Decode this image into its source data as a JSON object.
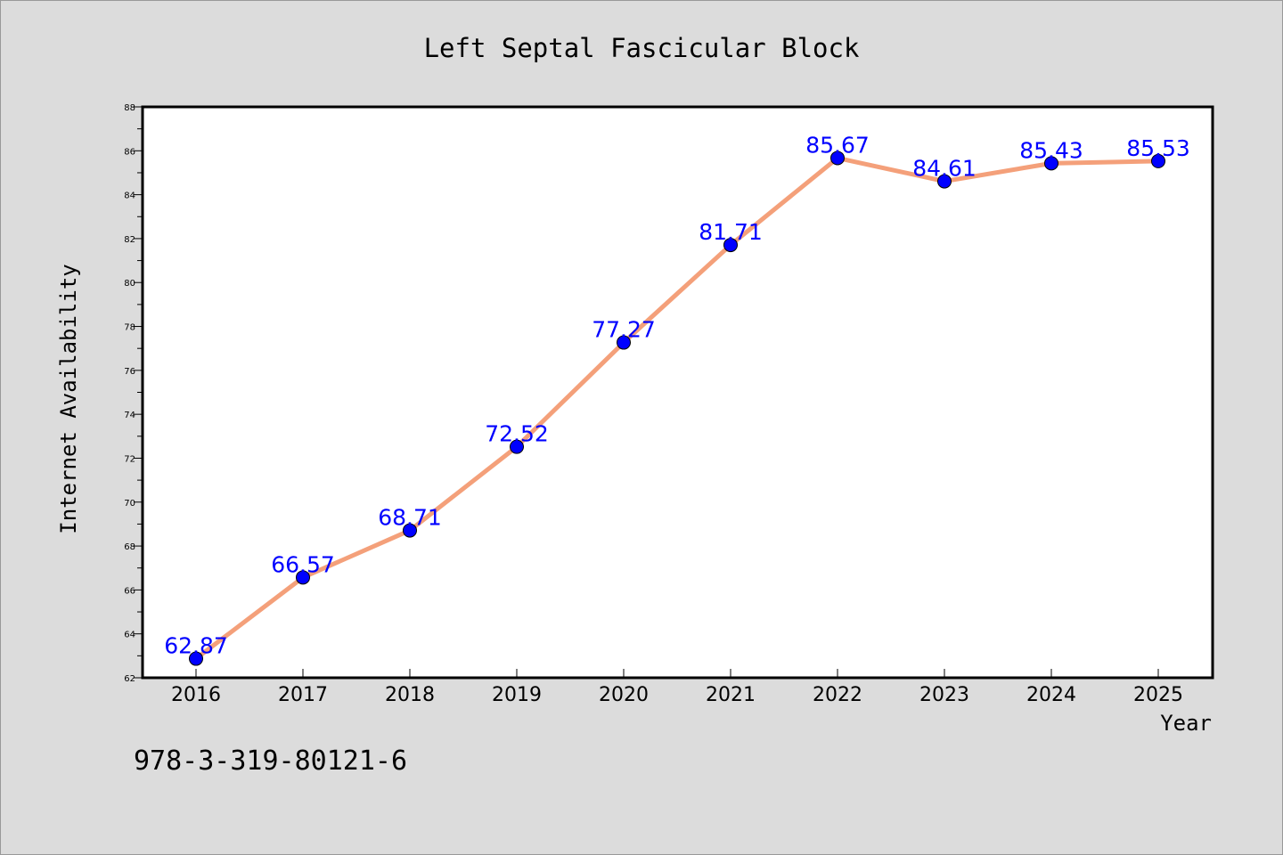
{
  "chart_data": {
    "type": "line",
    "title": "Left Septal Fascicular Block",
    "xlabel": "Year",
    "ylabel": "Internet Availability",
    "x": [
      "2016",
      "2017",
      "2018",
      "2019",
      "2020",
      "2021",
      "2022",
      "2023",
      "2024",
      "2025"
    ],
    "series": [
      {
        "values": [
          62.87,
          66.57,
          68.71,
          72.52,
          77.27,
          81.71,
          85.67,
          84.61,
          85.43,
          85.53
        ],
        "labels": [
          "62.87",
          "66.57",
          "68.71",
          "72.52",
          "77.27",
          "81.71",
          "85.67",
          "84.61",
          "85.43",
          "85.53"
        ],
        "line_color": "#f4a07a",
        "marker_color": "#0000ff"
      }
    ],
    "ylim": [
      62,
      88
    ],
    "yticks": [
      "62",
      "64",
      "66",
      "68",
      "70",
      "72",
      "74",
      "76",
      "78",
      "80",
      "82",
      "84",
      "86",
      "88"
    ],
    "grid": false,
    "legend": "none",
    "background": "#dcdcdc",
    "plot_background": "#ffffff"
  },
  "footer": {
    "isbn": "978-3-319-80121-6"
  }
}
